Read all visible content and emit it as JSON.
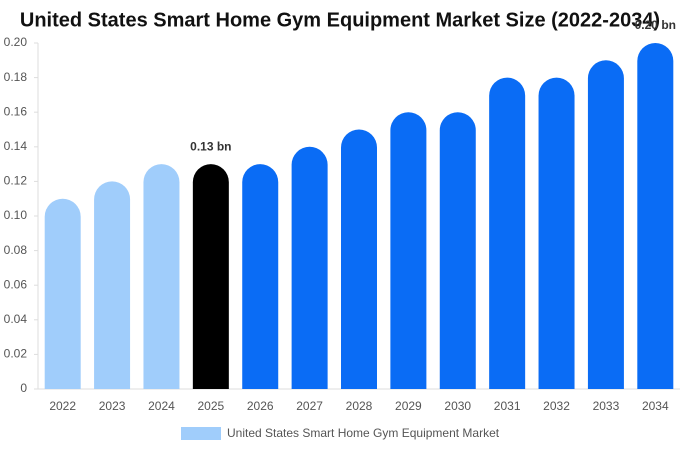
{
  "chart_data": {
    "type": "bar",
    "title": "United States Smart Home Gym Equipment Market Size (2022-2034)",
    "categories": [
      "2022",
      "2023",
      "2024",
      "2025",
      "2026",
      "2027",
      "2028",
      "2029",
      "2030",
      "2031",
      "2032",
      "2033",
      "2034"
    ],
    "series": [
      {
        "name": "United States Smart Home Gym Equipment Market",
        "color": "#a0cdfb",
        "values": [
          0.11,
          0.12,
          0.13,
          0.13,
          0.13,
          0.14,
          0.15,
          0.16,
          0.16,
          0.18,
          0.18,
          0.19,
          0.2
        ],
        "colors": [
          "#a0cdfb",
          "#a0cdfb",
          "#a0cdfb",
          "#000000",
          "#0a6cf5",
          "#0a6cf5",
          "#0a6cf5",
          "#0a6cf5",
          "#0a6cf5",
          "#0a6cf5",
          "#0a6cf5",
          "#0a6cf5",
          "#0a6cf5"
        ],
        "value_labels": [
          null,
          null,
          null,
          "0.13 bn",
          null,
          null,
          null,
          null,
          null,
          null,
          null,
          null,
          "0.20 bn"
        ]
      }
    ],
    "ylim": [
      0,
      0.2
    ],
    "yticks": [
      0,
      {
        "value": 0.02,
        "label": "0.02"
      },
      {
        "value": 0.04,
        "label": "0.04"
      },
      {
        "value": 0.06,
        "label": "0.06"
      },
      {
        "value": 0.08,
        "label": "0.08"
      },
      {
        "value": 0.1,
        "label": "0.10"
      },
      {
        "value": 0.12,
        "label": "0.12"
      },
      {
        "value": 0.14,
        "label": "0.14"
      },
      {
        "value": 0.16,
        "label": "0.16"
      },
      {
        "value": 0.18,
        "label": "0.18"
      },
      {
        "value": 0.2,
        "label": "0.20"
      }
    ]
  }
}
